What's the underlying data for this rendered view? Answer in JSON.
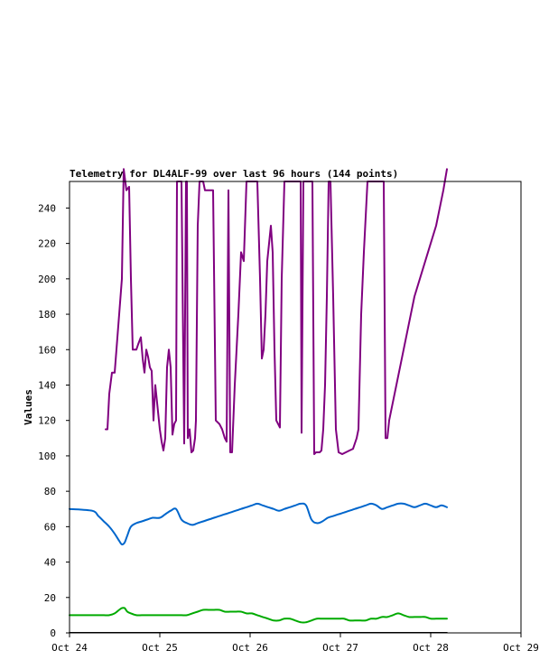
{
  "chart_data": {
    "type": "line",
    "title": "Telemetry for DL4ALF-99 over last 96 hours (144 points)",
    "ylabel": "Values",
    "xlabel": "",
    "ylim": [
      0,
      255
    ],
    "xlim": [
      "2024-10-24",
      "2024-10-29"
    ],
    "x_ticks": [
      "Oct 24",
      "Oct 25",
      "Oct 26",
      "Oct 27",
      "Oct 28",
      "Oct 29"
    ],
    "y_ticks": [
      0,
      20,
      40,
      60,
      80,
      100,
      120,
      140,
      160,
      180,
      200,
      220,
      240
    ],
    "grid": false,
    "legend": "none",
    "series": [
      {
        "color": "#800080",
        "x_days": [
          0.4,
          0.42,
          0.44,
          0.47,
          0.5,
          0.55,
          0.58,
          0.6,
          0.63,
          0.66,
          0.68,
          0.7,
          0.72,
          0.74,
          0.76,
          0.79,
          0.81,
          0.83,
          0.85,
          0.87,
          0.89,
          0.91,
          0.93,
          0.95,
          0.97,
          1.0,
          1.02,
          1.04,
          1.06,
          1.08,
          1.1,
          1.12,
          1.14,
          1.16,
          1.18,
          1.19,
          1.2,
          1.22,
          1.24,
          1.27,
          1.29,
          1.3,
          1.31,
          1.33,
          1.35,
          1.37,
          1.39,
          1.4,
          1.42,
          1.44,
          1.46,
          1.48,
          1.5,
          1.53,
          1.56,
          1.59,
          1.62,
          1.66,
          1.69,
          1.72,
          1.74,
          1.76,
          1.78,
          1.8,
          1.83,
          1.85,
          1.87,
          1.9,
          1.93,
          1.96,
          1.99,
          2.02,
          2.05,
          2.08,
          2.11,
          2.13,
          2.15,
          2.17,
          2.19,
          2.21,
          2.23,
          2.25,
          2.27,
          2.29,
          2.31,
          2.33,
          2.35,
          2.38,
          2.41,
          2.44,
          2.46,
          2.48,
          2.5,
          2.52,
          2.54,
          2.56,
          2.57,
          2.59,
          2.61,
          2.63,
          2.65,
          2.67,
          2.69,
          2.71,
          2.73,
          2.75,
          2.77,
          2.79,
          2.81,
          2.83,
          2.85,
          2.87,
          2.89,
          2.92,
          2.95,
          2.98,
          3.02,
          3.06,
          3.1,
          3.14,
          3.18,
          3.2,
          3.23,
          3.26,
          3.3,
          3.34,
          3.38,
          3.42,
          3.44,
          3.46,
          3.48,
          3.5,
          3.52,
          3.54,
          3.58,
          3.62,
          3.66,
          3.7,
          3.74,
          3.78,
          3.82,
          3.88,
          3.94,
          4.0,
          4.06,
          4.1,
          4.14,
          4.18
        ],
        "values": [
          115,
          115,
          135,
          147,
          147,
          180,
          200,
          262,
          250,
          252,
          200,
          160,
          160,
          160,
          163,
          167,
          155,
          147,
          160,
          156,
          150,
          148,
          120,
          140,
          130,
          115,
          108,
          103,
          110,
          150,
          160,
          150,
          112,
          118,
          120,
          255,
          255,
          255,
          255,
          107,
          255,
          255,
          110,
          115,
          102,
          103,
          110,
          120,
          230,
          255,
          255,
          255,
          250,
          250,
          250,
          250,
          120,
          118,
          115,
          110,
          108,
          250,
          102,
          102,
          140,
          160,
          180,
          215,
          210,
          255,
          255,
          255,
          255,
          255,
          200,
          155,
          160,
          180,
          210,
          220,
          230,
          215,
          160,
          120,
          118,
          116,
          200,
          255,
          255,
          255,
          255,
          255,
          255,
          255,
          255,
          255,
          113,
          255,
          255,
          255,
          255,
          255,
          255,
          101,
          102,
          102,
          102,
          103,
          115,
          140,
          190,
          255,
          255,
          190,
          115,
          102,
          101,
          102,
          103,
          104,
          110,
          115,
          180,
          215,
          255,
          255,
          255,
          255,
          255,
          255,
          255,
          110,
          110,
          120,
          130,
          140,
          150,
          160,
          170,
          180,
          190,
          200,
          210,
          220,
          230,
          240,
          250,
          262
        ],
        "smooth": false
      },
      {
        "color": "#0066cc",
        "x_days": [
          0.0,
          0.25,
          0.32,
          0.38,
          0.44,
          0.5,
          0.55,
          0.58,
          0.61,
          0.64,
          0.68,
          0.74,
          0.8,
          0.86,
          0.92,
          1.0,
          1.06,
          1.12,
          1.18,
          1.24,
          1.3,
          1.36,
          1.42,
          1.48,
          1.54,
          1.6,
          1.66,
          1.72,
          1.78,
          1.84,
          1.9,
          1.96,
          2.02,
          2.08,
          2.14,
          2.2,
          2.26,
          2.32,
          2.38,
          2.44,
          2.5,
          2.56,
          2.62,
          2.68,
          2.74,
          2.8,
          2.86,
          2.92,
          2.98,
          3.04,
          3.1,
          3.16,
          3.22,
          3.28,
          3.34,
          3.4,
          3.46,
          3.52,
          3.58,
          3.64,
          3.7,
          3.76,
          3.82,
          3.88,
          3.94,
          4.0,
          4.06,
          4.12,
          4.18
        ],
        "values": [
          70,
          69,
          66,
          63,
          60,
          56,
          52,
          50,
          51,
          55,
          60,
          62,
          63,
          64,
          65,
          65,
          67,
          69,
          70,
          64,
          62,
          61,
          62,
          63,
          64,
          65,
          66,
          67,
          68,
          69,
          70,
          71,
          72,
          73,
          72,
          71,
          70,
          69,
          70,
          71,
          72,
          73,
          72,
          64,
          62,
          63,
          65,
          66,
          67,
          68,
          69,
          70,
          71,
          72,
          73,
          72,
          70,
          71,
          72,
          73,
          73,
          72,
          71,
          72,
          73,
          72,
          71,
          72,
          71
        ],
        "smooth": true
      },
      {
        "color": "#00aa00",
        "x_days": [
          0.0,
          0.25,
          0.32,
          0.38,
          0.44,
          0.5,
          0.55,
          0.58,
          0.61,
          0.64,
          0.68,
          0.74,
          0.8,
          0.86,
          0.92,
          1.0,
          1.06,
          1.12,
          1.18,
          1.24,
          1.3,
          1.36,
          1.42,
          1.48,
          1.54,
          1.6,
          1.66,
          1.72,
          1.78,
          1.84,
          1.9,
          1.96,
          2.02,
          2.08,
          2.14,
          2.2,
          2.26,
          2.32,
          2.38,
          2.44,
          2.5,
          2.56,
          2.62,
          2.68,
          2.74,
          2.8,
          2.86,
          2.92,
          2.98,
          3.04,
          3.1,
          3.16,
          3.22,
          3.28,
          3.34,
          3.4,
          3.46,
          3.52,
          3.58,
          3.64,
          3.7,
          3.76,
          3.82,
          3.88,
          3.94,
          4.0,
          4.06,
          4.12,
          4.18
        ],
        "values": [
          10,
          10,
          10,
          10,
          10,
          11,
          13,
          14,
          14,
          12,
          11,
          10,
          10,
          10,
          10,
          10,
          10,
          10,
          10,
          10,
          10,
          11,
          12,
          13,
          13,
          13,
          13,
          12,
          12,
          12,
          12,
          11,
          11,
          10,
          9,
          8,
          7,
          7,
          8,
          8,
          7,
          6,
          6,
          7,
          8,
          8,
          8,
          8,
          8,
          8,
          7,
          7,
          7,
          7,
          8,
          8,
          9,
          9,
          10,
          11,
          10,
          9,
          9,
          9,
          9,
          8,
          8,
          8,
          8
        ],
        "smooth": true
      },
      {
        "color": "#000000",
        "x_days": [
          0.0,
          4.18
        ],
        "values": [
          0,
          0
        ],
        "smooth": false
      }
    ]
  }
}
